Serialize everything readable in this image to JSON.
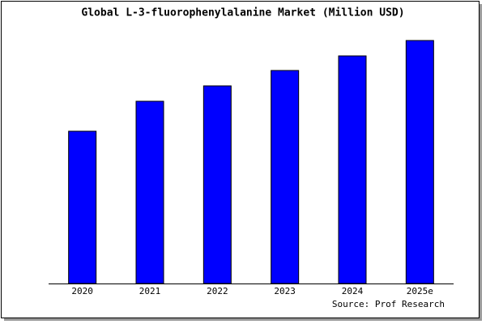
{
  "chart_data": {
    "type": "bar",
    "title": "Global L-3-fluorophenylalanine Market (Million USD)",
    "categories": [
      "2020",
      "2021",
      "2022",
      "2023",
      "2024",
      "2025e"
    ],
    "values": [
      188,
      225,
      244,
      263,
      281,
      300
    ],
    "color": "#0000ff",
    "source": "Source: Prof Research"
  }
}
